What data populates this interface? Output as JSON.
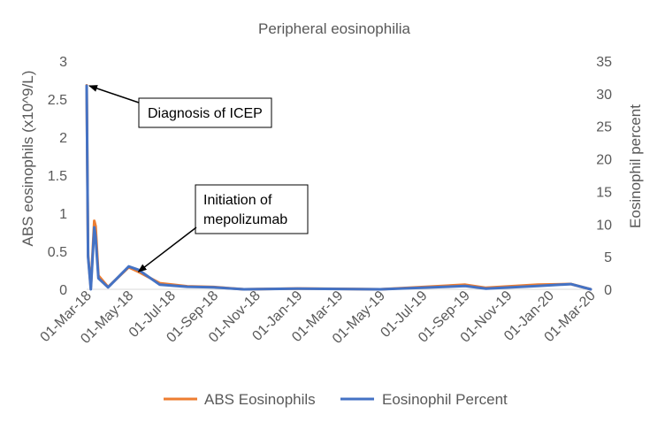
{
  "chart_data": {
    "type": "line",
    "title": "Peripheral eosinophilia",
    "ylabel_left": "ABS eosinophils (x10^9/L)",
    "ylabel_right": "Eosinophil percent",
    "ylim_left": [
      0,
      3
    ],
    "ylim_right": [
      0,
      35
    ],
    "y_ticks_left": [
      "0",
      "0.5",
      "1",
      "1.5",
      "2",
      "2.5",
      "3"
    ],
    "y_ticks_right": [
      "0",
      "5",
      "10",
      "15",
      "20",
      "25",
      "30",
      "35"
    ],
    "x_ticks": [
      "01-Mar-18",
      "01-May-18",
      "01-Jul-18",
      "01-Sep-18",
      "01-Nov-18",
      "01-Jan-19",
      "01-Mar-19",
      "01-May-19",
      "01-Jul-19",
      "01-Sep-19",
      "01-Nov-19",
      "01-Jan-20",
      "01-Mar-20"
    ],
    "xlim": [
      "2018-03-01",
      "2020-03-01"
    ],
    "grid": false,
    "legend_position": "bottom",
    "series": [
      {
        "name": "ABS Eosinophils",
        "axis": "left",
        "color": "#ED7D31",
        "points": [
          [
            "2018-03-01",
            2.68
          ],
          [
            "2018-03-03",
            0.45
          ],
          [
            "2018-03-07",
            0.02
          ],
          [
            "2018-03-12",
            0.9
          ],
          [
            "2018-03-14",
            0.83
          ],
          [
            "2018-03-18",
            0.18
          ],
          [
            "2018-04-01",
            0.03
          ],
          [
            "2018-05-01",
            0.29
          ],
          [
            "2018-05-15",
            0.23
          ],
          [
            "2018-06-15",
            0.08
          ],
          [
            "2018-07-25",
            0.04
          ],
          [
            "2018-09-01",
            0.03
          ],
          [
            "2018-10-15",
            0.0
          ],
          [
            "2019-01-01",
            0.01
          ],
          [
            "2019-05-01",
            0.0
          ],
          [
            "2019-09-01",
            0.06
          ],
          [
            "2019-10-01",
            0.02
          ],
          [
            "2019-12-15",
            0.06
          ],
          [
            "2020-02-01",
            0.07
          ],
          [
            "2020-05-01",
            0.0
          ]
        ]
      },
      {
        "name": "Eosinophil Percent",
        "axis": "right",
        "color": "#4472C4",
        "points": [
          [
            "2018-03-01",
            31.2
          ],
          [
            "2018-03-03",
            5.0
          ],
          [
            "2018-03-07",
            0.0
          ],
          [
            "2018-03-12",
            9.5
          ],
          [
            "2018-03-14",
            8.0
          ],
          [
            "2018-03-18",
            1.7
          ],
          [
            "2018-04-01",
            0.3
          ],
          [
            "2018-05-01",
            3.5
          ],
          [
            "2018-05-15",
            3.0
          ],
          [
            "2018-06-15",
            0.7
          ],
          [
            "2018-07-25",
            0.4
          ],
          [
            "2018-09-01",
            0.3
          ],
          [
            "2018-10-15",
            0.0
          ],
          [
            "2019-01-01",
            0.1
          ],
          [
            "2019-05-01",
            0.0
          ],
          [
            "2019-09-01",
            0.5
          ],
          [
            "2019-10-01",
            0.1
          ],
          [
            "2019-12-15",
            0.5
          ],
          [
            "2020-02-01",
            0.8
          ],
          [
            "2020-05-01",
            0.0
          ]
        ]
      }
    ],
    "annotations": [
      {
        "text": "Diagnosis of ICEP",
        "date": "2018-03-01",
        "value_right": 31.2
      },
      {
        "text": "Initiation of mepolizumab",
        "date": "2018-05-15",
        "value_left": 0.23
      }
    ]
  }
}
